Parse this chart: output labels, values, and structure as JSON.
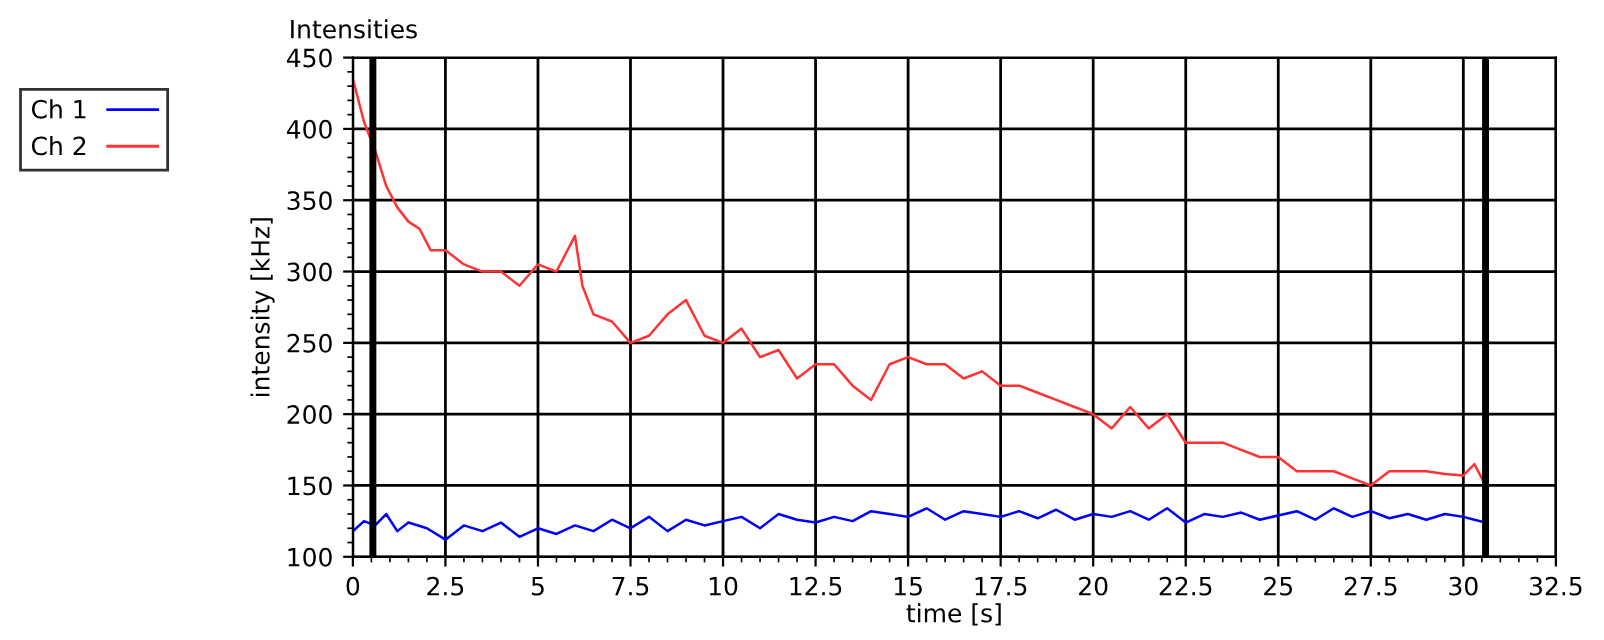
{
  "chart_data": {
    "type": "line",
    "title": "Intensities",
    "xlabel": "time [s]",
    "ylabel": "intensity [kHz]",
    "xlim": [
      0,
      32.5
    ],
    "xticks": [
      0,
      2.5,
      5,
      7.5,
      10,
      12.5,
      15,
      17.5,
      20,
      22.5,
      25,
      27.5,
      30,
      32.5
    ],
    "ylim": [
      100,
      450
    ],
    "yticks": [
      100,
      150,
      200,
      250,
      300,
      350,
      400,
      450
    ],
    "grid": true,
    "legend": "top left",
    "line_style": "solid",
    "marker": "none",
    "ref_lines": [
      {
        "axis": "x",
        "value": 0.54,
        "color": "#000000"
      },
      {
        "axis": "x",
        "value": 30.6,
        "color": "#000000"
      }
    ],
    "series": [
      {
        "name": "Ch 1",
        "color": "#0000ff",
        "x": [
          0,
          0.3,
          0.6,
          0.9,
          1.2,
          1.5,
          2,
          2.5,
          3,
          3.5,
          4,
          4.5,
          5,
          5.5,
          6,
          6.5,
          7,
          7.5,
          8,
          8.5,
          9,
          9.5,
          10,
          10.5,
          11,
          11.5,
          12,
          12.5,
          13,
          13.5,
          14,
          14.5,
          15,
          15.5,
          16,
          16.5,
          17,
          17.5,
          18,
          18.5,
          19,
          19.5,
          20,
          20.5,
          21,
          21.5,
          22,
          22.5,
          23,
          23.5,
          24,
          24.5,
          25,
          25.5,
          26,
          26.5,
          27,
          27.5,
          28,
          28.5,
          29,
          29.5,
          30,
          30.3,
          30.6
        ],
        "values": [
          118,
          125,
          122,
          130,
          118,
          124,
          120,
          112,
          122,
          118,
          124,
          114,
          120,
          116,
          122,
          118,
          126,
          120,
          128,
          118,
          126,
          122,
          125,
          128,
          120,
          130,
          126,
          124,
          128,
          125,
          132,
          130,
          128,
          134,
          126,
          132,
          130,
          128,
          132,
          127,
          133,
          126,
          130,
          128,
          132,
          126,
          134,
          124,
          130,
          128,
          131,
          126,
          129,
          132,
          126,
          134,
          128,
          132,
          127,
          130,
          126,
          130,
          128,
          126,
          124
        ]
      },
      {
        "name": "Ch 2",
        "color": "#ff3333",
        "x": [
          0,
          0.3,
          0.6,
          0.9,
          1.2,
          1.5,
          1.8,
          2.1,
          2.5,
          3,
          3.5,
          4,
          4.5,
          5,
          5.5,
          6,
          6.2,
          6.5,
          7,
          7.5,
          8,
          8.5,
          9,
          9.5,
          10,
          10.5,
          11,
          11.5,
          12,
          12.5,
          13,
          13.5,
          14,
          14.5,
          15,
          15.5,
          16,
          16.5,
          17,
          17.5,
          18,
          18.5,
          19,
          19.5,
          20,
          20.5,
          21,
          21.5,
          22,
          22.5,
          23,
          23.5,
          24,
          24.5,
          25,
          25.5,
          26,
          26.5,
          27,
          27.5,
          28,
          28.5,
          29,
          29.5,
          30,
          30.3,
          30.6
        ],
        "values": [
          435,
          405,
          385,
          360,
          345,
          335,
          330,
          315,
          315,
          305,
          300,
          300,
          290,
          305,
          300,
          325,
          290,
          270,
          265,
          250,
          255,
          270,
          280,
          255,
          250,
          260,
          240,
          245,
          225,
          235,
          235,
          220,
          210,
          235,
          240,
          235,
          235,
          225,
          230,
          220,
          220,
          215,
          210,
          205,
          200,
          190,
          205,
          190,
          200,
          180,
          180,
          180,
          175,
          170,
          170,
          160,
          160,
          160,
          155,
          150,
          160,
          160,
          160,
          158,
          157,
          165,
          150
        ]
      }
    ]
  }
}
